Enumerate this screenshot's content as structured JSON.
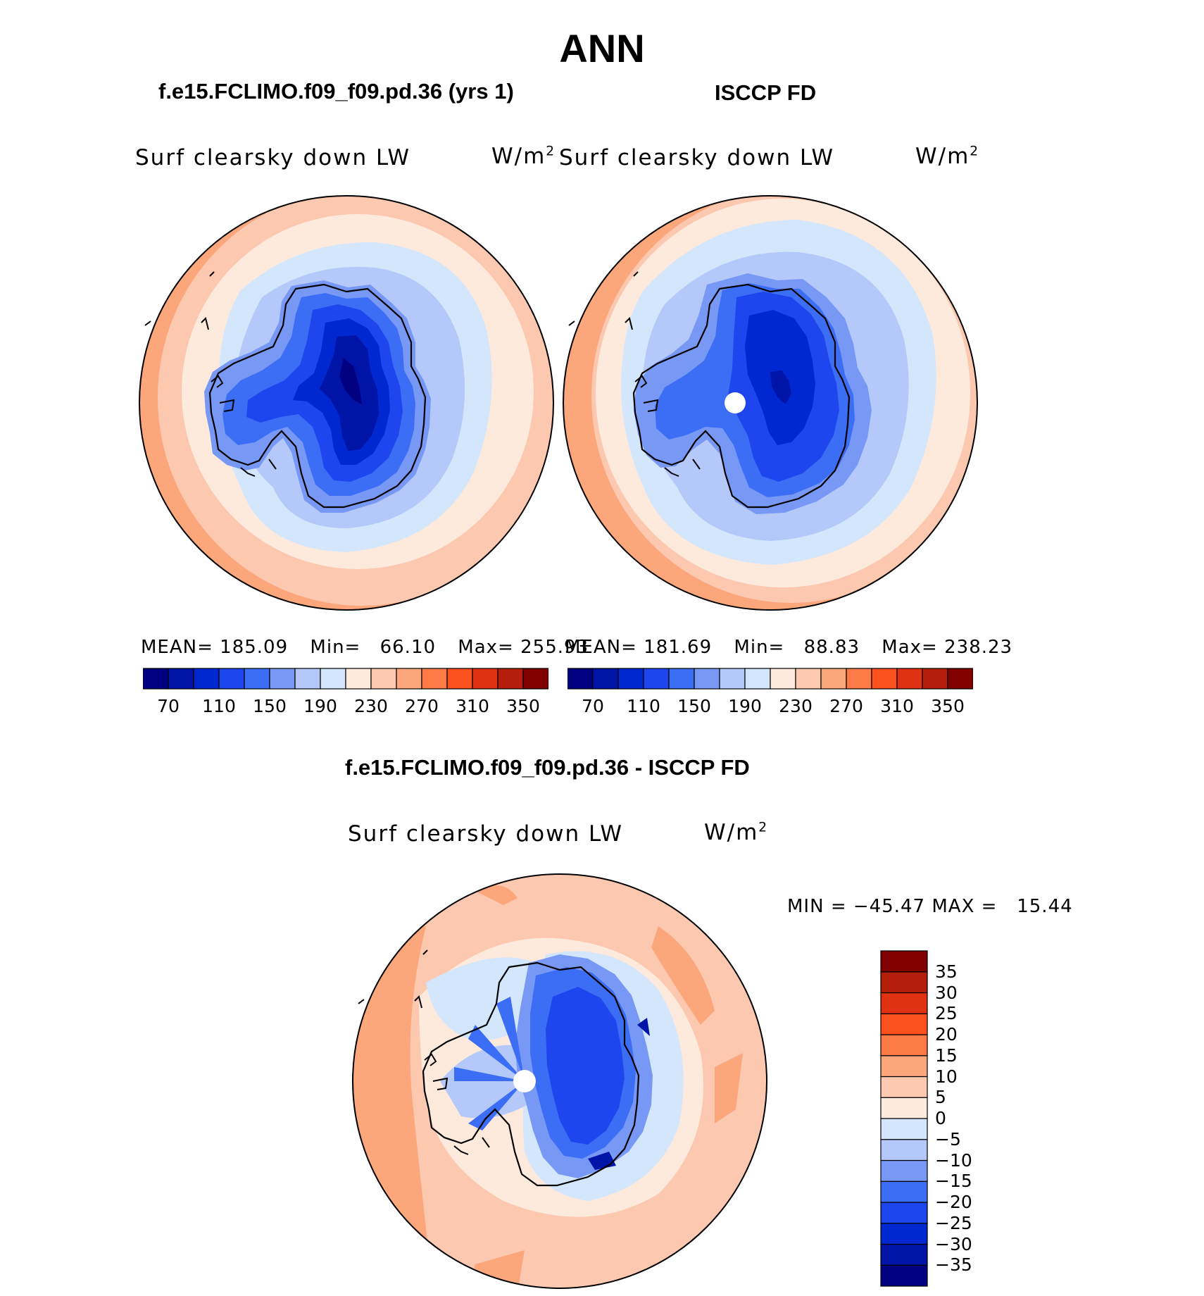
{
  "page_title": "ANN",
  "panels": [
    {
      "title": "f.e15.FCLIMO.f09_f09.pd.36 (yrs 1)",
      "variable": "Surf clearsky down LW",
      "units": "W/m",
      "units_sup": "2",
      "mean_label": "MEAN=",
      "mean": "185.09",
      "min_label": "Min=",
      "min": "66.10",
      "max_label": "Max=",
      "max": "255.93"
    },
    {
      "title": "ISCCP FD",
      "variable": "Surf clearsky down LW",
      "units": "W/m",
      "units_sup": "2",
      "mean_label": "MEAN=",
      "mean": "181.69",
      "min_label": "Min=",
      "min": "88.83",
      "max_label": "Max=",
      "max": "238.23"
    }
  ],
  "diff_panel": {
    "title": "f.e15.FCLIMO.f09_f09.pd.36 - ISCCP FD",
    "variable": "Surf clearsky down LW",
    "units": "W/m",
    "units_sup": "2",
    "minmax_text": "MIN = −45.47 MAX =   15.44"
  },
  "abs_colorbar": {
    "colors": [
      "#000080",
      "#0014a8",
      "#0028d0",
      "#1e46ee",
      "#3c6ef5",
      "#7898f5",
      "#b4c8fa",
      "#d4e6fc",
      "#feeadc",
      "#fdc8b0",
      "#fca67c",
      "#fc7a46",
      "#fc501e",
      "#e03212",
      "#b41e0a",
      "#800000"
    ],
    "tick_labels": [
      "70",
      "110",
      "150",
      "190",
      "230",
      "270",
      "310",
      "350"
    ]
  },
  "diff_colorbar": {
    "colors": [
      "#000080",
      "#0014a8",
      "#0028d0",
      "#1e46ee",
      "#3c6ef5",
      "#7898f5",
      "#b4c8fa",
      "#d4e6fc",
      "#feeadc",
      "#fdc8b0",
      "#fca67c",
      "#fc7a46",
      "#fc501e",
      "#e03212",
      "#b41e0a",
      "#800000"
    ],
    "tick_labels": [
      "35",
      "30",
      "25",
      "20",
      "15",
      "10",
      "5",
      "0",
      "−5",
      "−10",
      "−15",
      "−20",
      "−25",
      "−30",
      "−35"
    ]
  },
  "map_colors": {
    "ocean_outer": "#fca67c",
    "ocean_mid": "#fdc8b0",
    "ocean_inner": "#feeadc",
    "ice_1": "#d4e6fc",
    "ice_2": "#b4c8fa",
    "land_1": "#7898f5",
    "land_2": "#3c6ef5",
    "land_3": "#1e46ee",
    "land_4": "#0028d0",
    "land_5": "#0014a8",
    "land_6": "#000080"
  }
}
